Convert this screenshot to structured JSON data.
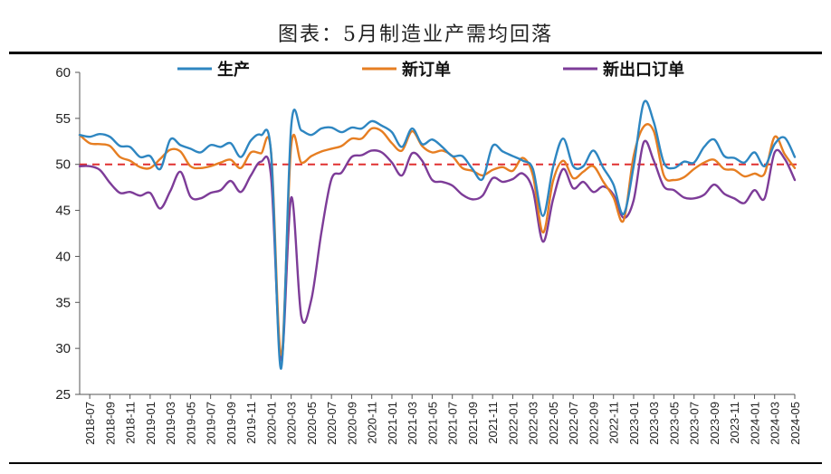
{
  "title": "图表：5月制造业产需均回落",
  "chart_data": {
    "type": "line",
    "ylim": [
      25,
      60
    ],
    "yticks": [
      25,
      30,
      35,
      40,
      45,
      50,
      55,
      60
    ],
    "reference_line": {
      "y": 50,
      "color": "#e03030",
      "style": "dashed"
    },
    "legend_position": "top",
    "colors": {
      "生产": "#2e86c1",
      "新订单": "#e67e22",
      "新出口订单": "#7d3c98"
    },
    "x_tick_labels": [
      "2018-07",
      "2018-09",
      "2018-11",
      "2019-01",
      "2019-03",
      "2019-05",
      "2019-07",
      "2019-09",
      "2019-11",
      "2020-01",
      "2020-03",
      "2020-05",
      "2020-07",
      "2020-09",
      "2020-11",
      "2021-01",
      "2021-03",
      "2021-05",
      "2021-07",
      "2021-09",
      "2021-11",
      "2022-01",
      "2022-03",
      "2022-05",
      "2022-07",
      "2022-09",
      "2022-11",
      "2023-01",
      "2023-03",
      "2023-05",
      "2023-07",
      "2023-09",
      "2023-11",
      "2024-01",
      "2024-03",
      "2024-05"
    ],
    "x": [
      "2018-06",
      "2018-07",
      "2018-08",
      "2018-09",
      "2018-10",
      "2018-11",
      "2018-12",
      "2019-01",
      "2019-02",
      "2019-03",
      "2019-04",
      "2019-05",
      "2019-06",
      "2019-07",
      "2019-08",
      "2019-09",
      "2019-10",
      "2019-11",
      "2019-12",
      "2020-01",
      "2020-02",
      "2020-03",
      "2020-04",
      "2020-05",
      "2020-06",
      "2020-07",
      "2020-08",
      "2020-09",
      "2020-10",
      "2020-11",
      "2020-12",
      "2021-01",
      "2021-02",
      "2021-03",
      "2021-04",
      "2021-05",
      "2021-06",
      "2021-07",
      "2021-08",
      "2021-09",
      "2021-10",
      "2021-11",
      "2021-12",
      "2022-01",
      "2022-02",
      "2022-03",
      "2022-04",
      "2022-05",
      "2022-06",
      "2022-07",
      "2022-08",
      "2022-09",
      "2022-10",
      "2022-11",
      "2022-12",
      "2023-01",
      "2023-02",
      "2023-03",
      "2023-04",
      "2023-05",
      "2023-06",
      "2023-07",
      "2023-08",
      "2023-09",
      "2023-10",
      "2023-11",
      "2023-12",
      "2024-01",
      "2024-02",
      "2024-03",
      "2024-04",
      "2024-05"
    ],
    "series": [
      {
        "name": "生产",
        "values": [
          53.2,
          53.0,
          53.3,
          53.0,
          52.0,
          51.9,
          50.8,
          50.9,
          49.5,
          52.7,
          52.1,
          51.7,
          51.3,
          52.1,
          51.9,
          52.3,
          50.8,
          52.6,
          53.2,
          51.3,
          27.8,
          54.1,
          53.7,
          53.2,
          53.9,
          54.0,
          53.5,
          54.0,
          53.9,
          54.7,
          54.2,
          53.5,
          51.9,
          53.9,
          52.2,
          52.7,
          51.9,
          50.9,
          50.9,
          49.5,
          48.4,
          52.0,
          51.4,
          50.9,
          50.4,
          49.5,
          44.4,
          49.7,
          52.8,
          49.8,
          49.8,
          51.5,
          49.6,
          47.8,
          44.6,
          49.8,
          56.7,
          54.6,
          50.2,
          49.6,
          50.3,
          50.2,
          51.9,
          52.7,
          50.9,
          50.7,
          50.2,
          51.3,
          49.8,
          52.2,
          52.9,
          50.8
        ]
      },
      {
        "name": "新订单",
        "values": [
          53.2,
          52.3,
          52.2,
          52.0,
          50.8,
          50.4,
          49.7,
          49.6,
          50.6,
          51.6,
          51.4,
          49.8,
          49.6,
          49.8,
          50.2,
          50.5,
          49.6,
          51.3,
          51.2,
          51.4,
          29.3,
          52.0,
          50.2,
          50.9,
          51.4,
          51.7,
          52.0,
          52.8,
          52.8,
          53.9,
          53.6,
          52.3,
          51.5,
          53.6,
          52.0,
          51.3,
          51.5,
          50.9,
          49.6,
          49.3,
          48.8,
          49.4,
          49.7,
          49.3,
          50.7,
          48.8,
          42.6,
          48.2,
          50.4,
          48.5,
          49.2,
          49.8,
          48.1,
          46.4,
          43.9,
          50.9,
          54.1,
          53.6,
          48.8,
          48.3,
          48.6,
          49.5,
          50.2,
          50.5,
          49.5,
          49.4,
          48.7,
          49.0,
          49.0,
          53.0,
          51.1,
          49.6
        ]
      },
      {
        "name": "新出口订单",
        "values": [
          49.8,
          49.8,
          49.4,
          48.0,
          46.9,
          47.0,
          46.6,
          46.9,
          45.2,
          47.1,
          49.2,
          46.5,
          46.3,
          46.9,
          47.2,
          48.2,
          47.0,
          48.8,
          50.3,
          48.7,
          28.7,
          46.4,
          33.5,
          35.3,
          42.6,
          48.4,
          49.1,
          50.8,
          51.0,
          51.5,
          51.3,
          50.2,
          48.8,
          51.2,
          50.4,
          48.3,
          48.1,
          47.7,
          46.7,
          46.2,
          46.6,
          48.5,
          48.1,
          48.4,
          49.0,
          47.2,
          41.6,
          46.2,
          49.5,
          47.4,
          48.1,
          47.0,
          47.6,
          46.7,
          44.2,
          46.1,
          52.4,
          50.4,
          47.6,
          47.2,
          46.4,
          46.3,
          46.7,
          47.8,
          46.8,
          46.3,
          45.8,
          47.2,
          46.3,
          51.3,
          50.6,
          48.3
        ]
      }
    ]
  }
}
